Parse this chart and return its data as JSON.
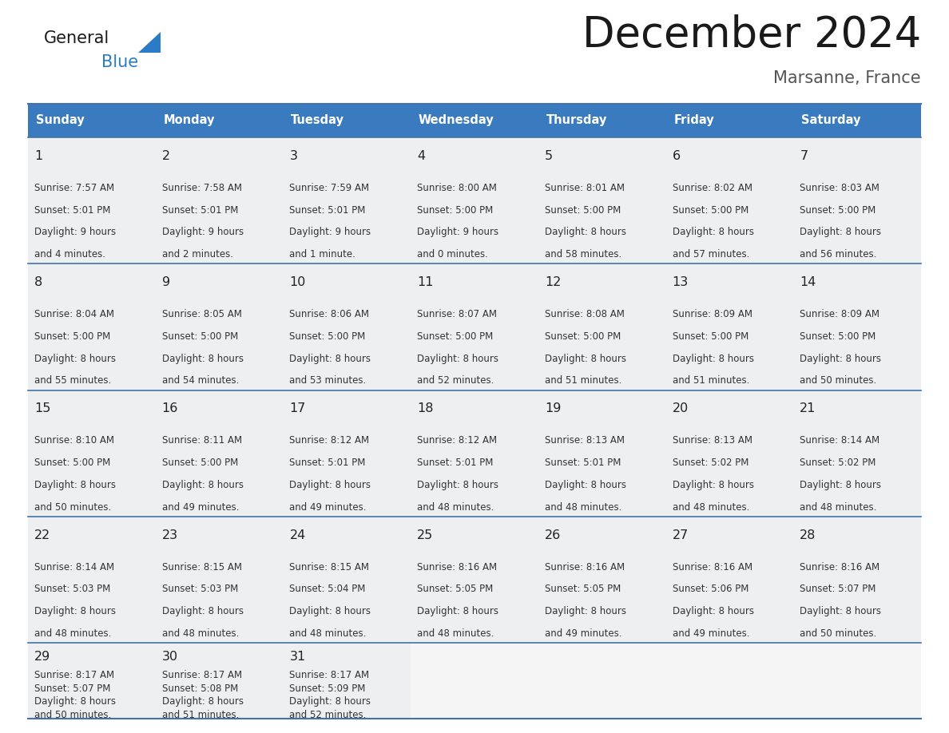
{
  "title": "December 2024",
  "subtitle": "Marsanne, France",
  "header_color": "#3a7abf",
  "header_text_color": "#ffffff",
  "days_of_week": [
    "Sunday",
    "Monday",
    "Tuesday",
    "Wednesday",
    "Thursday",
    "Friday",
    "Saturday"
  ],
  "weeks": [
    [
      {
        "day": 1,
        "sunrise": "7:57 AM",
        "sunset": "5:01 PM",
        "daylight_hours": 9,
        "daylight_minutes": 4
      },
      {
        "day": 2,
        "sunrise": "7:58 AM",
        "sunset": "5:01 PM",
        "daylight_hours": 9,
        "daylight_minutes": 2
      },
      {
        "day": 3,
        "sunrise": "7:59 AM",
        "sunset": "5:01 PM",
        "daylight_hours": 9,
        "daylight_minutes": 1
      },
      {
        "day": 4,
        "sunrise": "8:00 AM",
        "sunset": "5:00 PM",
        "daylight_hours": 9,
        "daylight_minutes": 0
      },
      {
        "day": 5,
        "sunrise": "8:01 AM",
        "sunset": "5:00 PM",
        "daylight_hours": 8,
        "daylight_minutes": 58
      },
      {
        "day": 6,
        "sunrise": "8:02 AM",
        "sunset": "5:00 PM",
        "daylight_hours": 8,
        "daylight_minutes": 57
      },
      {
        "day": 7,
        "sunrise": "8:03 AM",
        "sunset": "5:00 PM",
        "daylight_hours": 8,
        "daylight_minutes": 56
      }
    ],
    [
      {
        "day": 8,
        "sunrise": "8:04 AM",
        "sunset": "5:00 PM",
        "daylight_hours": 8,
        "daylight_minutes": 55
      },
      {
        "day": 9,
        "sunrise": "8:05 AM",
        "sunset": "5:00 PM",
        "daylight_hours": 8,
        "daylight_minutes": 54
      },
      {
        "day": 10,
        "sunrise": "8:06 AM",
        "sunset": "5:00 PM",
        "daylight_hours": 8,
        "daylight_minutes": 53
      },
      {
        "day": 11,
        "sunrise": "8:07 AM",
        "sunset": "5:00 PM",
        "daylight_hours": 8,
        "daylight_minutes": 52
      },
      {
        "day": 12,
        "sunrise": "8:08 AM",
        "sunset": "5:00 PM",
        "daylight_hours": 8,
        "daylight_minutes": 51
      },
      {
        "day": 13,
        "sunrise": "8:09 AM",
        "sunset": "5:00 PM",
        "daylight_hours": 8,
        "daylight_minutes": 51
      },
      {
        "day": 14,
        "sunrise": "8:09 AM",
        "sunset": "5:00 PM",
        "daylight_hours": 8,
        "daylight_minutes": 50
      }
    ],
    [
      {
        "day": 15,
        "sunrise": "8:10 AM",
        "sunset": "5:00 PM",
        "daylight_hours": 8,
        "daylight_minutes": 50
      },
      {
        "day": 16,
        "sunrise": "8:11 AM",
        "sunset": "5:00 PM",
        "daylight_hours": 8,
        "daylight_minutes": 49
      },
      {
        "day": 17,
        "sunrise": "8:12 AM",
        "sunset": "5:01 PM",
        "daylight_hours": 8,
        "daylight_minutes": 49
      },
      {
        "day": 18,
        "sunrise": "8:12 AM",
        "sunset": "5:01 PM",
        "daylight_hours": 8,
        "daylight_minutes": 48
      },
      {
        "day": 19,
        "sunrise": "8:13 AM",
        "sunset": "5:01 PM",
        "daylight_hours": 8,
        "daylight_minutes": 48
      },
      {
        "day": 20,
        "sunrise": "8:13 AM",
        "sunset": "5:02 PM",
        "daylight_hours": 8,
        "daylight_minutes": 48
      },
      {
        "day": 21,
        "sunrise": "8:14 AM",
        "sunset": "5:02 PM",
        "daylight_hours": 8,
        "daylight_minutes": 48
      }
    ],
    [
      {
        "day": 22,
        "sunrise": "8:14 AM",
        "sunset": "5:03 PM",
        "daylight_hours": 8,
        "daylight_minutes": 48
      },
      {
        "day": 23,
        "sunrise": "8:15 AM",
        "sunset": "5:03 PM",
        "daylight_hours": 8,
        "daylight_minutes": 48
      },
      {
        "day": 24,
        "sunrise": "8:15 AM",
        "sunset": "5:04 PM",
        "daylight_hours": 8,
        "daylight_minutes": 48
      },
      {
        "day": 25,
        "sunrise": "8:16 AM",
        "sunset": "5:05 PM",
        "daylight_hours": 8,
        "daylight_minutes": 48
      },
      {
        "day": 26,
        "sunrise": "8:16 AM",
        "sunset": "5:05 PM",
        "daylight_hours": 8,
        "daylight_minutes": 49
      },
      {
        "day": 27,
        "sunrise": "8:16 AM",
        "sunset": "5:06 PM",
        "daylight_hours": 8,
        "daylight_minutes": 49
      },
      {
        "day": 28,
        "sunrise": "8:16 AM",
        "sunset": "5:07 PM",
        "daylight_hours": 8,
        "daylight_minutes": 50
      }
    ],
    [
      {
        "day": 29,
        "sunrise": "8:17 AM",
        "sunset": "5:07 PM",
        "daylight_hours": 8,
        "daylight_minutes": 50
      },
      {
        "day": 30,
        "sunrise": "8:17 AM",
        "sunset": "5:08 PM",
        "daylight_hours": 8,
        "daylight_minutes": 51
      },
      {
        "day": 31,
        "sunrise": "8:17 AM",
        "sunset": "5:09 PM",
        "daylight_hours": 8,
        "daylight_minutes": 52
      },
      null,
      null,
      null,
      null
    ]
  ],
  "cell_bg_color": "#eeeff1",
  "cell_empty_color": "#f5f5f5",
  "border_color": "#4472a8",
  "text_color": "#333333",
  "day_number_color": "#222222",
  "logo_general_color": "#1a1a1a",
  "logo_blue_color": "#2a7cc7",
  "fig_width": 11.88,
  "fig_height": 9.18,
  "dpi": 100
}
